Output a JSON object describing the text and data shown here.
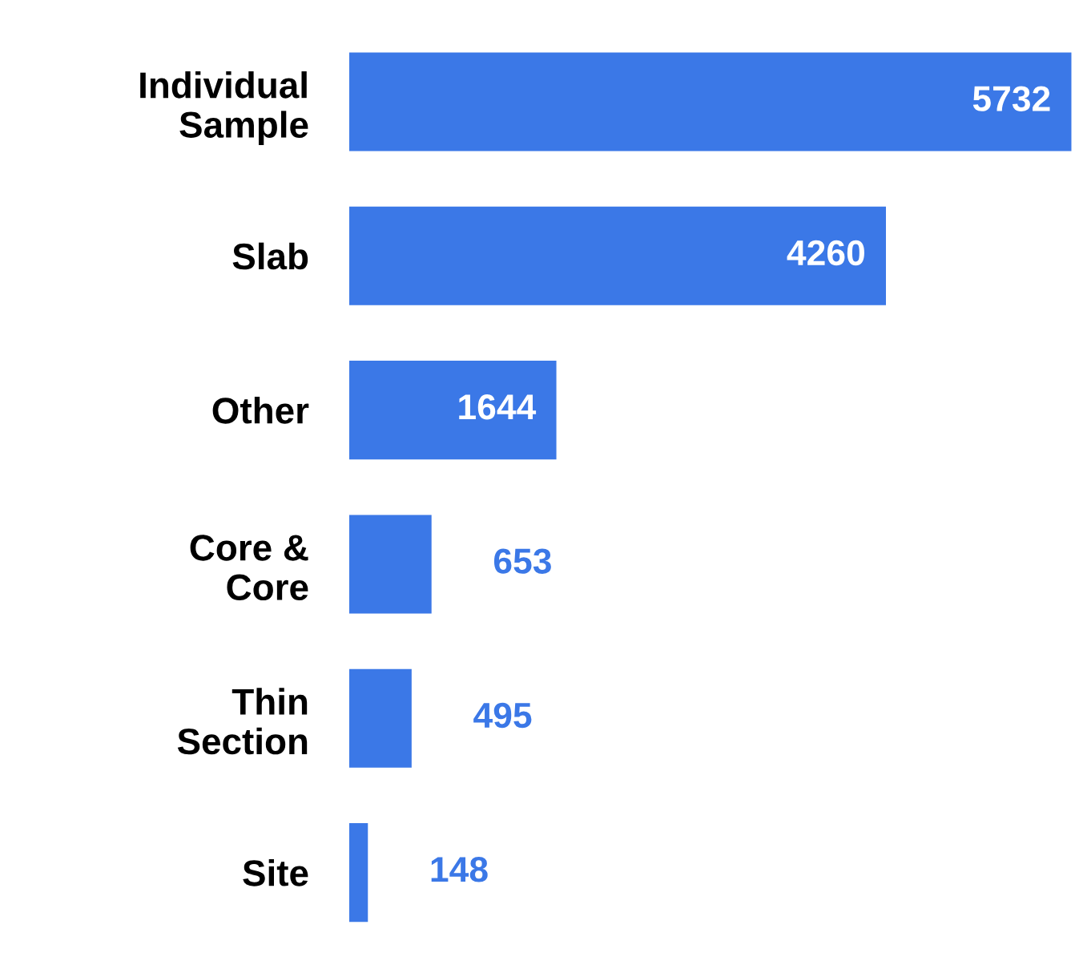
{
  "chart_data": {
    "type": "bar",
    "orientation": "horizontal",
    "categories": [
      "Individual\nSample",
      "Slab",
      "Other",
      "Core &\nCore",
      "Thin\nSection",
      "Site"
    ],
    "values": [
      5732,
      4260,
      1644,
      653,
      495,
      148
    ],
    "color": "#3b78e7",
    "data_labels": true,
    "grid": false,
    "legend": false,
    "tick_labels": "y"
  }
}
